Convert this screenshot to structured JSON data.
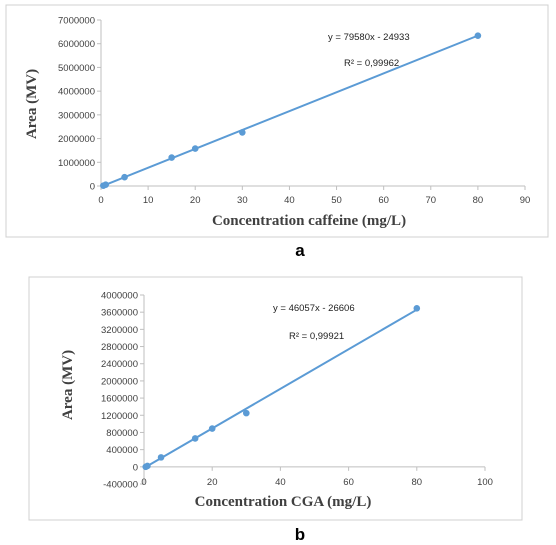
{
  "chart_data": [
    {
      "type": "scatter",
      "caption": "a",
      "xlabel": "Concentration caffeine (mg/L)",
      "ylabel": "Area (MV)",
      "xlim": [
        0,
        90
      ],
      "ylim": [
        0,
        7000000
      ],
      "x_ticks": [
        "0",
        "10",
        "20",
        "30",
        "40",
        "50",
        "60",
        "70",
        "80",
        "90"
      ],
      "y_ticks": [
        "0",
        "1000000",
        "2000000",
        "3000000",
        "4000000",
        "5000000",
        "6000000",
        "7000000"
      ],
      "points": [
        {
          "x": 0.5,
          "y": 15000
        },
        {
          "x": 1,
          "y": 55000
        },
        {
          "x": 5,
          "y": 370000
        },
        {
          "x": 15,
          "y": 1200000
        },
        {
          "x": 20,
          "y": 1580000
        },
        {
          "x": 30,
          "y": 2260000
        },
        {
          "x": 80,
          "y": 6340000
        }
      ],
      "trendline": {
        "slope": 79580,
        "intercept": -24933,
        "x_range": [
          0.5,
          80
        ]
      },
      "equation": "y = 79580x - 24933",
      "r_squared_label": "R² = 0,99962",
      "color": "#5b9bd5",
      "grid": false
    },
    {
      "type": "scatter",
      "caption": "b",
      "xlabel": "Concentration CGA (mg/L)",
      "ylabel": "Area (MV)",
      "xlim": [
        0,
        100
      ],
      "ylim": [
        -400000,
        4000000
      ],
      "x_ticks": [
        "0",
        "20",
        "40",
        "60",
        "80",
        "100"
      ],
      "y_ticks": [
        "-400000",
        "0",
        "400000",
        "800000",
        "1200000",
        "1600000",
        "2000000",
        "2400000",
        "2800000",
        "3200000",
        "3600000",
        "4000000"
      ],
      "points": [
        {
          "x": 0.5,
          "y": 0
        },
        {
          "x": 1,
          "y": 20000
        },
        {
          "x": 5,
          "y": 220000
        },
        {
          "x": 15,
          "y": 660000
        },
        {
          "x": 20,
          "y": 890000
        },
        {
          "x": 30,
          "y": 1250000
        },
        {
          "x": 80,
          "y": 3690000
        }
      ],
      "trendline": {
        "slope": 46057,
        "intercept": -26606,
        "x_range": [
          0.5,
          80
        ]
      },
      "equation": "y = 46057x - 26606",
      "r_squared_label": "R² = 0,99921",
      "color": "#5b9bd5",
      "grid": false
    }
  ]
}
